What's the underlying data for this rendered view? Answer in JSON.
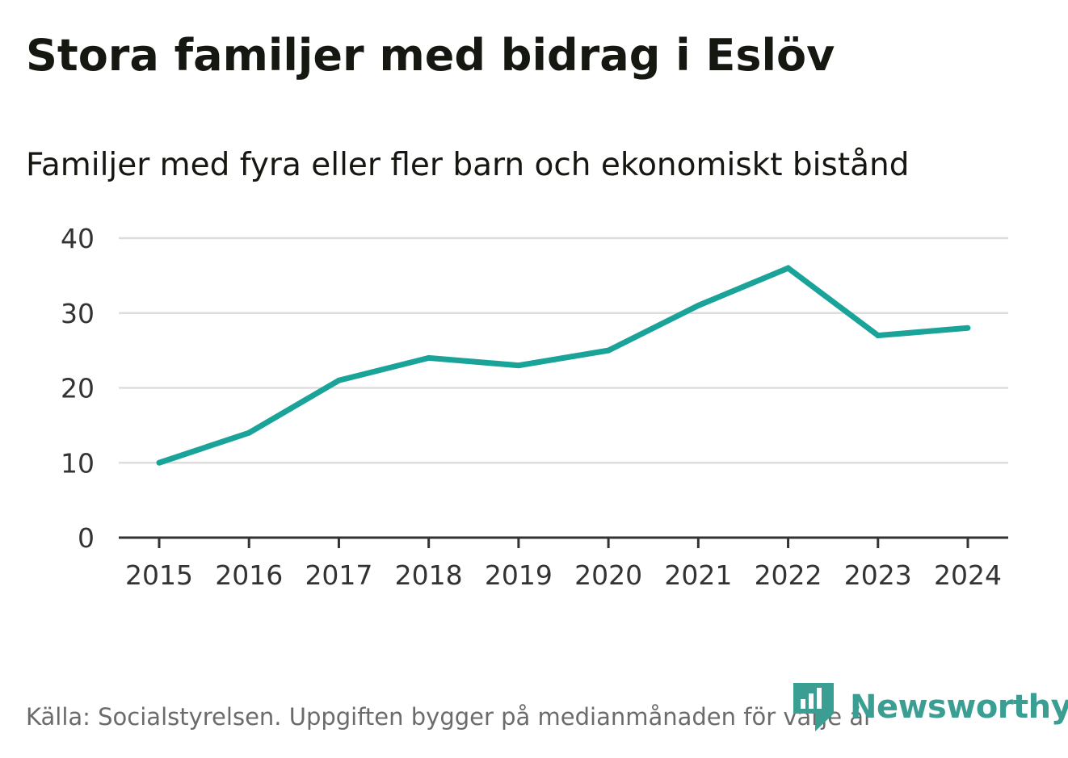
{
  "header": {
    "title": "Stora familjer med bidrag i Eslöv",
    "subtitle": "Familjer med fyra eller fler barn och ekonomiskt bistånd"
  },
  "chart_data": {
    "type": "line",
    "title": "Stora familjer med bidrag i Eslöv",
    "subtitle": "Familjer med fyra eller fler barn och ekonomiskt bistånd",
    "xlabel": "",
    "ylabel": "",
    "categories": [
      "2015",
      "2016",
      "2017",
      "2018",
      "2019",
      "2020",
      "2021",
      "2022",
      "2023",
      "2024"
    ],
    "series": [
      {
        "name": "Familjer med fyra eller fler barn och ekonomiskt bistånd",
        "values": [
          10,
          14,
          21,
          24,
          23,
          25,
          31,
          36,
          27,
          28
        ],
        "color": "#1aa399"
      }
    ],
    "ylim": [
      0,
      40
    ],
    "yticks": [
      "0",
      "10",
      "20",
      "30",
      "40"
    ],
    "grid": true
  },
  "footer": {
    "source": "Källa: Socialstyrelsen. Uppgiften bygger på medianmånaden för varje år",
    "brand": "Newsworthy"
  },
  "colors": {
    "line": "#1aa399",
    "grid": "#dddddd",
    "axis": "#333333",
    "brand": "#3a9e93"
  },
  "icons": {
    "brand_logo": "newsworthy-logo-icon"
  }
}
